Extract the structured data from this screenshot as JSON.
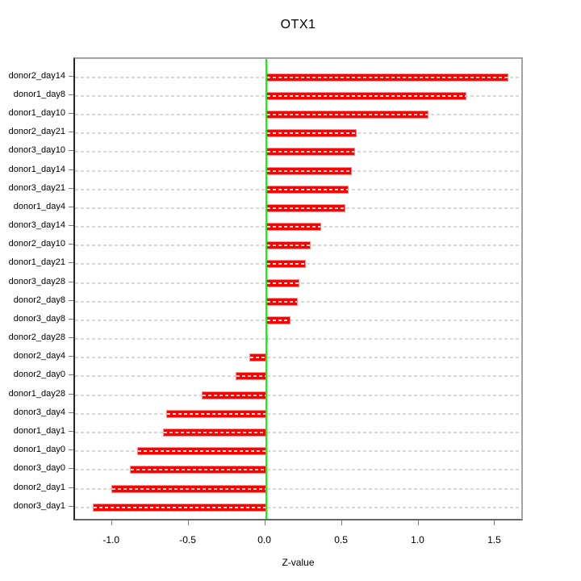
{
  "chart_data": {
    "type": "bar",
    "orientation": "horizontal",
    "title": "OTX1",
    "xlabel": "Z-value",
    "ylabel": "",
    "legend": "none",
    "grid": "dashed horizontal reference line per category",
    "x_ticks": [
      -1.0,
      -0.5,
      0.0,
      0.5,
      1.0,
      1.5
    ],
    "x_tick_labels": [
      "-1.0",
      "-0.5",
      "0.0",
      "0.5",
      "1.0",
      "1.5"
    ],
    "xlim": [
      -1.25,
      1.69
    ],
    "zero_reference_line": 0.0,
    "categories_top_to_bottom": [
      "donor2_day14",
      "donor1_day8",
      "donor1_day10",
      "donor2_day21",
      "donor3_day10",
      "donor1_day14",
      "donor3_day21",
      "donor1_day4",
      "donor3_day14",
      "donor2_day10",
      "donor1_day21",
      "donor3_day28",
      "donor2_day8",
      "donor3_day8",
      "donor2_day28",
      "donor2_day4",
      "donor2_day0",
      "donor1_day28",
      "donor3_day4",
      "donor1_day1",
      "donor1_day0",
      "donor3_day0",
      "donor2_day1",
      "donor3_day1"
    ],
    "values": [
      1.58,
      1.31,
      1.06,
      0.59,
      0.58,
      0.56,
      0.54,
      0.52,
      0.36,
      0.29,
      0.26,
      0.22,
      0.21,
      0.16,
      0.01,
      -0.11,
      -0.2,
      -0.42,
      -0.65,
      -0.67,
      -0.84,
      -0.89,
      -1.01,
      -1.13
    ],
    "colors": {
      "bar_fill": "#ff0000",
      "bar_edge": "#ff8c8c",
      "zero_line": "#00ff00",
      "gridline": "#d8d8d8",
      "box_border": "#a3a3a3",
      "y_axis_line": "#262626",
      "x_axis_line": "#666666",
      "tick": "#7a7a7a",
      "text": "#000000",
      "background": "#ffffff"
    }
  }
}
